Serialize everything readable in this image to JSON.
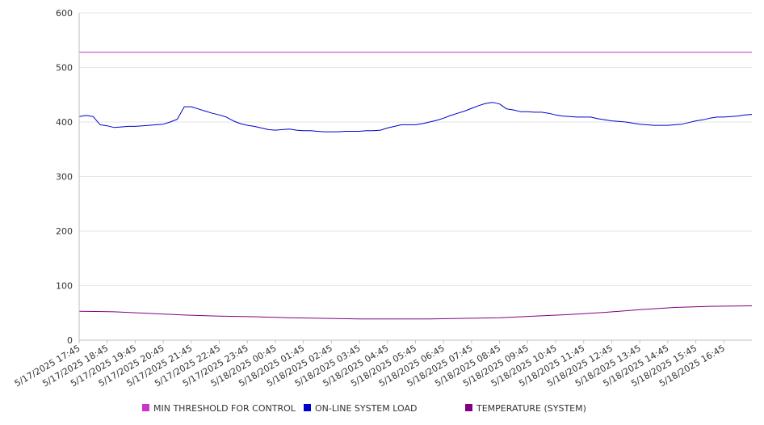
{
  "chart_data": {
    "type": "line",
    "title": "",
    "xlabel": "",
    "ylabel": "",
    "ylim": [
      0,
      600
    ],
    "yticks": [
      0,
      100,
      200,
      300,
      400,
      500,
      600
    ],
    "grid": true,
    "legend_position": "bottom",
    "x_labels": [
      "5/17/2025 17:45",
      "5/17/2025 18:45",
      "5/17/2025 19:45",
      "5/17/2025 20:45",
      "5/17/2025 21:45",
      "5/17/2025 22:45",
      "5/17/2025 23:45",
      "5/18/2025 00:45",
      "5/18/2025 01:45",
      "5/18/2025 02:45",
      "5/18/2025 03:45",
      "5/18/2025 04:45",
      "5/18/2025 05:45",
      "5/18/2025 06:45",
      "5/18/2025 07:45",
      "5/18/2025 08:45",
      "5/18/2025 09:45",
      "5/18/2025 10:45",
      "5/18/2025 11:45",
      "5/18/2025 12:45",
      "5/18/2025 13:45",
      "5/18/2025 14:45",
      "5/18/2025 15:45",
      "5/18/2025 16:45"
    ],
    "x_range": [
      "5/17/2025 17:45",
      "5/18/2025 17:45"
    ],
    "series": [
      {
        "name": "MIN THRESHOLD FOR CONTROL",
        "color": "#cc33cc",
        "points": [
          [
            "5/17/2025 17:45",
            528
          ],
          [
            "5/18/2025 17:45",
            528
          ]
        ]
      },
      {
        "name": "ON-LINE SYSTEM LOAD",
        "color": "#0000cc",
        "points": [
          [
            "5/17/2025 17:45",
            410
          ],
          [
            "5/17/2025 18:00",
            412
          ],
          [
            "5/17/2025 18:15",
            410
          ],
          [
            "5/17/2025 18:30",
            395
          ],
          [
            "5/17/2025 18:45",
            393
          ],
          [
            "5/17/2025 19:00",
            390
          ],
          [
            "5/17/2025 19:15",
            391
          ],
          [
            "5/17/2025 19:30",
            392
          ],
          [
            "5/17/2025 19:45",
            392
          ],
          [
            "5/17/2025 20:00",
            393
          ],
          [
            "5/17/2025 20:15",
            394
          ],
          [
            "5/17/2025 20:30",
            395
          ],
          [
            "5/17/2025 20:45",
            396
          ],
          [
            "5/17/2025 21:00",
            400
          ],
          [
            "5/17/2025 21:15",
            405
          ],
          [
            "5/17/2025 21:30",
            428
          ],
          [
            "5/17/2025 21:45",
            428
          ],
          [
            "5/17/2025 22:00",
            424
          ],
          [
            "5/17/2025 22:15",
            420
          ],
          [
            "5/17/2025 22:30",
            416
          ],
          [
            "5/17/2025 22:45",
            413
          ],
          [
            "5/17/2025 23:00",
            409
          ],
          [
            "5/17/2025 23:15",
            402
          ],
          [
            "5/17/2025 23:30",
            397
          ],
          [
            "5/17/2025 23:45",
            394
          ],
          [
            "5/18/2025 00:00",
            392
          ],
          [
            "5/18/2025 00:15",
            389
          ],
          [
            "5/18/2025 00:30",
            386
          ],
          [
            "5/18/2025 00:45",
            385
          ],
          [
            "5/18/2025 01:00",
            386
          ],
          [
            "5/18/2025 01:15",
            387
          ],
          [
            "5/18/2025 01:30",
            385
          ],
          [
            "5/18/2025 01:45",
            384
          ],
          [
            "5/18/2025 02:00",
            384
          ],
          [
            "5/18/2025 02:15",
            383
          ],
          [
            "5/18/2025 02:30",
            382
          ],
          [
            "5/18/2025 02:45",
            382
          ],
          [
            "5/18/2025 03:00",
            382
          ],
          [
            "5/18/2025 03:15",
            383
          ],
          [
            "5/18/2025 03:30",
            383
          ],
          [
            "5/18/2025 03:45",
            383
          ],
          [
            "5/18/2025 04:00",
            384
          ],
          [
            "5/18/2025 04:15",
            384
          ],
          [
            "5/18/2025 04:30",
            385
          ],
          [
            "5/18/2025 04:45",
            389
          ],
          [
            "5/18/2025 05:00",
            392
          ],
          [
            "5/18/2025 05:15",
            395
          ],
          [
            "5/18/2025 05:30",
            395
          ],
          [
            "5/18/2025 05:45",
            395
          ],
          [
            "5/18/2025 06:00",
            397
          ],
          [
            "5/18/2025 06:15",
            400
          ],
          [
            "5/18/2025 06:30",
            403
          ],
          [
            "5/18/2025 06:45",
            407
          ],
          [
            "5/18/2025 07:00",
            412
          ],
          [
            "5/18/2025 07:15",
            416
          ],
          [
            "5/18/2025 07:30",
            420
          ],
          [
            "5/18/2025 07:45",
            425
          ],
          [
            "5/18/2025 08:00",
            430
          ],
          [
            "5/18/2025 08:15",
            434
          ],
          [
            "5/18/2025 08:30",
            436
          ],
          [
            "5/18/2025 08:45",
            433
          ],
          [
            "5/18/2025 09:00",
            424
          ],
          [
            "5/18/2025 09:15",
            422
          ],
          [
            "5/18/2025 09:30",
            419
          ],
          [
            "5/18/2025 09:45",
            419
          ],
          [
            "5/18/2025 10:00",
            418
          ],
          [
            "5/18/2025 10:15",
            418
          ],
          [
            "5/18/2025 10:30",
            416
          ],
          [
            "5/18/2025 10:45",
            413
          ],
          [
            "5/18/2025 11:00",
            411
          ],
          [
            "5/18/2025 11:15",
            410
          ],
          [
            "5/18/2025 11:30",
            409
          ],
          [
            "5/18/2025 11:45",
            409
          ],
          [
            "5/18/2025 12:00",
            409
          ],
          [
            "5/18/2025 12:15",
            406
          ],
          [
            "5/18/2025 12:30",
            404
          ],
          [
            "5/18/2025 12:45",
            402
          ],
          [
            "5/18/2025 13:00",
            401
          ],
          [
            "5/18/2025 13:15",
            400
          ],
          [
            "5/18/2025 13:30",
            398
          ],
          [
            "5/18/2025 13:45",
            396
          ],
          [
            "5/18/2025 14:00",
            395
          ],
          [
            "5/18/2025 14:15",
            394
          ],
          [
            "5/18/2025 14:30",
            394
          ],
          [
            "5/18/2025 14:45",
            394
          ],
          [
            "5/18/2025 15:00",
            395
          ],
          [
            "5/18/2025 15:15",
            396
          ],
          [
            "5/18/2025 15:30",
            399
          ],
          [
            "5/18/2025 15:45",
            402
          ],
          [
            "5/18/2025 16:00",
            404
          ],
          [
            "5/18/2025 16:15",
            407
          ],
          [
            "5/18/2025 16:30",
            409
          ],
          [
            "5/18/2025 16:45",
            409
          ],
          [
            "5/18/2025 17:00",
            410
          ],
          [
            "5/18/2025 17:15",
            411
          ],
          [
            "5/18/2025 17:30",
            413
          ],
          [
            "5/18/2025 17:45",
            414
          ]
        ]
      },
      {
        "name": "TEMPERATURE (SYSTEM)",
        "color": "#800080",
        "points": [
          [
            "5/17/2025 17:45",
            53
          ],
          [
            "5/17/2025 19:00",
            52
          ],
          [
            "5/17/2025 20:15",
            49
          ],
          [
            "5/17/2025 21:30",
            46
          ],
          [
            "5/17/2025 22:45",
            44
          ],
          [
            "5/18/2025 00:00",
            43
          ],
          [
            "5/18/2025 01:15",
            41
          ],
          [
            "5/18/2025 02:30",
            40
          ],
          [
            "5/18/2025 03:45",
            39
          ],
          [
            "5/18/2025 05:00",
            39
          ],
          [
            "5/18/2025 06:15",
            39
          ],
          [
            "5/18/2025 07:30",
            40
          ],
          [
            "5/18/2025 08:45",
            41
          ],
          [
            "5/18/2025 10:00",
            44
          ],
          [
            "5/18/2025 11:15",
            47
          ],
          [
            "5/18/2025 12:30",
            51
          ],
          [
            "5/18/2025 13:45",
            56
          ],
          [
            "5/18/2025 15:00",
            60
          ],
          [
            "5/18/2025 16:15",
            62
          ],
          [
            "5/18/2025 17:45",
            63
          ]
        ]
      }
    ]
  }
}
